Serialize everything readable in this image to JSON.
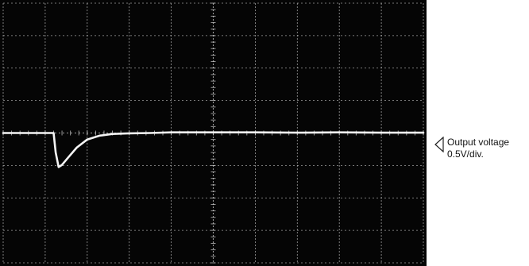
{
  "colors": {
    "screen": "#050505",
    "grid": "#cfcfcf",
    "trace": "#f4f4f4",
    "label_text": "#111111"
  },
  "annotation": {
    "marker_icon": "left-pointing-triangle-icon",
    "channel_name": "Output voltage",
    "scale": "0.5V/div."
  },
  "chart_data": {
    "type": "line",
    "title": "",
    "xlabel": "",
    "ylabel": "",
    "grid": true,
    "x_divisions": 10,
    "y_divisions": 8,
    "xlim": [
      0,
      10
    ],
    "ylim": [
      -4,
      4
    ],
    "series": [
      {
        "points": [
          [
            0.0,
            0.0
          ],
          [
            1.2,
            0.0
          ],
          [
            1.25,
            -0.6
          ],
          [
            1.32,
            -1.05
          ],
          [
            1.4,
            -0.98
          ],
          [
            1.55,
            -0.75
          ],
          [
            1.75,
            -0.45
          ],
          [
            2.0,
            -0.2
          ],
          [
            2.3,
            -0.08
          ],
          [
            2.6,
            -0.03
          ],
          [
            3.0,
            -0.01
          ],
          [
            3.5,
            0.0
          ],
          [
            4.0,
            0.02
          ],
          [
            5.0,
            0.02
          ],
          [
            6.0,
            0.02
          ],
          [
            7.0,
            0.01
          ],
          [
            8.0,
            0.02
          ],
          [
            9.0,
            0.01
          ],
          [
            10.0,
            0.01
          ]
        ]
      }
    ]
  }
}
